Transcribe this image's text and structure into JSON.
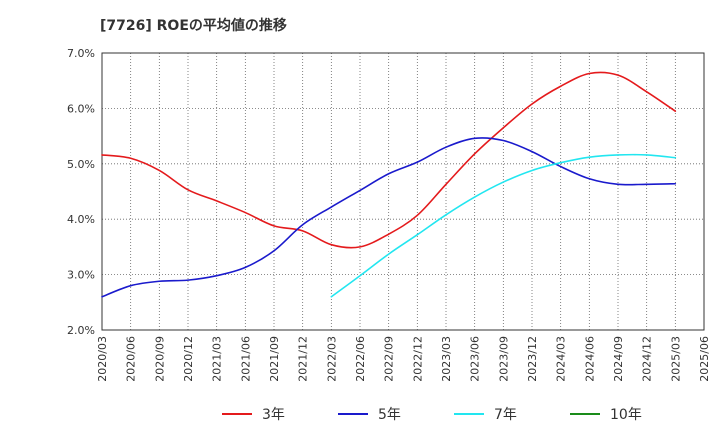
{
  "chart_data": {
    "type": "line",
    "title": "[7726]  ROEの平均値の推移",
    "xlabel": "",
    "ylabel": "",
    "ylim": [
      2.0,
      7.0
    ],
    "yticks": [
      "2.0%",
      "3.0%",
      "4.0%",
      "5.0%",
      "6.0%",
      "7.0%"
    ],
    "ytick_values": [
      2.0,
      3.0,
      4.0,
      5.0,
      6.0,
      7.0
    ],
    "categories": [
      "2020/03",
      "2020/06",
      "2020/09",
      "2020/12",
      "2021/03",
      "2021/06",
      "2021/09",
      "2021/12",
      "2022/03",
      "2022/06",
      "2022/09",
      "2022/12",
      "2023/03",
      "2023/06",
      "2023/09",
      "2023/12",
      "2024/03",
      "2024/06",
      "2024/09",
      "2024/12",
      "2025/03",
      "2025/06"
    ],
    "grid": true,
    "legend_position": "bottom",
    "series": [
      {
        "name": "3年",
        "color": "#e41a1c",
        "values": [
          5.16,
          5.1,
          4.88,
          4.53,
          4.33,
          4.12,
          3.88,
          3.79,
          3.54,
          3.5,
          3.73,
          4.07,
          4.63,
          5.18,
          5.65,
          6.08,
          6.4,
          6.63,
          6.6,
          6.3,
          5.95,
          null
        ]
      },
      {
        "name": "5年",
        "color": "#1a1acc",
        "values": [
          2.6,
          2.8,
          2.88,
          2.9,
          2.98,
          3.13,
          3.43,
          3.9,
          4.22,
          4.52,
          4.82,
          5.03,
          5.3,
          5.46,
          5.42,
          5.22,
          4.95,
          4.73,
          4.63,
          4.63,
          4.64,
          null
        ]
      },
      {
        "name": "7年",
        "color": "#22e6f0",
        "values": [
          null,
          null,
          null,
          null,
          null,
          null,
          null,
          null,
          2.6,
          2.98,
          3.37,
          3.72,
          4.08,
          4.4,
          4.67,
          4.88,
          5.02,
          5.12,
          5.16,
          5.16,
          5.11,
          null
        ]
      },
      {
        "name": "10年",
        "color": "#1a8c1a",
        "values": [
          null,
          null,
          null,
          null,
          null,
          null,
          null,
          null,
          null,
          null,
          null,
          null,
          null,
          null,
          null,
          null,
          null,
          null,
          null,
          null,
          null,
          null
        ]
      }
    ]
  }
}
